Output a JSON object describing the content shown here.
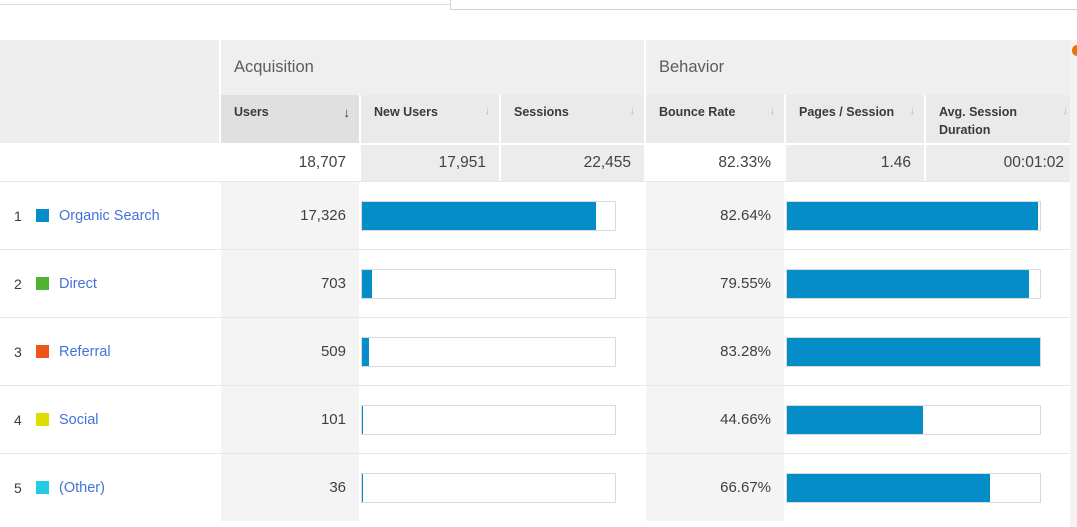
{
  "colors": {
    "bar": "#058dc7",
    "link": "#4272db"
  },
  "sections": {
    "acquisition": "Acquisition",
    "behavior": "Behavior"
  },
  "columns": {
    "users": {
      "label": "Users",
      "sort_icon": "↓",
      "sorted": true
    },
    "new_users": {
      "label": "New Users",
      "sort_icon": "↓"
    },
    "sessions": {
      "label": "Sessions",
      "sort_icon": "↓"
    },
    "bounce_rate": {
      "label": "Bounce Rate",
      "sort_icon": "↓"
    },
    "pages_session": {
      "label": "Pages / Session",
      "sort_icon": "↓"
    },
    "avg_session_duration": {
      "label": "Avg. Session Duration",
      "sort_icon": "↓"
    }
  },
  "totals": {
    "users": "18,707",
    "new_users": "17,951",
    "sessions": "22,455",
    "bounce_rate": "82.33%",
    "pages_session": "1.46",
    "avg_session_duration": "00:01:02"
  },
  "bar_refs": {
    "users_total": 18707,
    "bounce_max": 83.28
  },
  "rows": [
    {
      "rank": "1",
      "channel": "Organic Search",
      "swatch": "#058dc7",
      "users": "17,326",
      "users_value": 17326,
      "bounce_rate": "82.64%",
      "bounce_value": 82.64
    },
    {
      "rank": "2",
      "channel": "Direct",
      "swatch": "#50b432",
      "users": "703",
      "users_value": 703,
      "bounce_rate": "79.55%",
      "bounce_value": 79.55
    },
    {
      "rank": "3",
      "channel": "Referral",
      "swatch": "#ed561b",
      "users": "509",
      "users_value": 509,
      "bounce_rate": "83.28%",
      "bounce_value": 83.28
    },
    {
      "rank": "4",
      "channel": "Social",
      "swatch": "#dddf00",
      "users": "101",
      "users_value": 101,
      "bounce_rate": "44.66%",
      "bounce_value": 44.66
    },
    {
      "rank": "5",
      "channel": "(Other)",
      "swatch": "#24cbe5",
      "users": "36",
      "users_value": 36,
      "bounce_rate": "66.67%",
      "bounce_value": 66.67
    }
  ]
}
